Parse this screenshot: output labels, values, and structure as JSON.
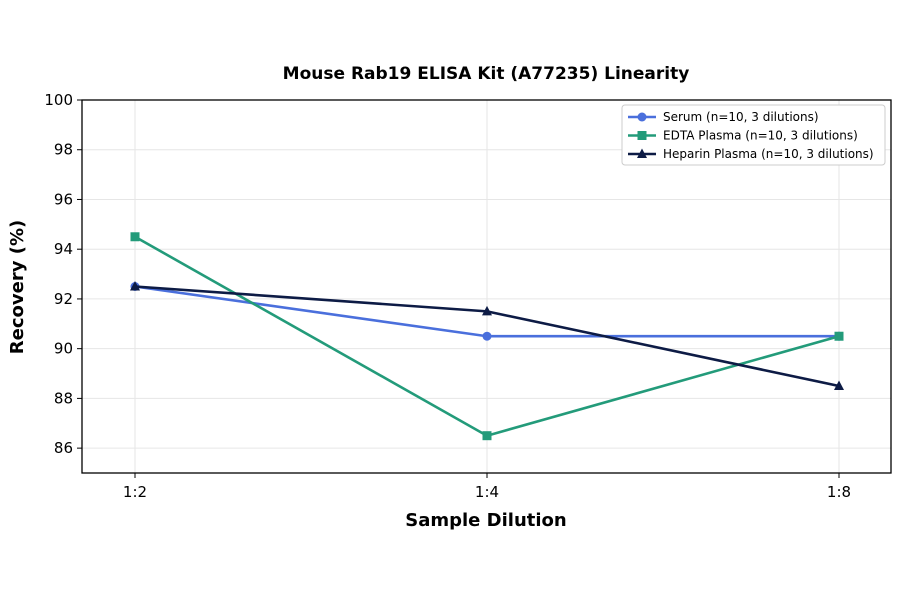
{
  "chart_data": {
    "type": "line",
    "title": "Mouse Rab19 ELISA Kit (A77235) Linearity",
    "xlabel": "Sample Dilution",
    "ylabel": "Recovery (%)",
    "categories": [
      "1:2",
      "1:4",
      "1:8"
    ],
    "ylim": [
      85,
      100
    ],
    "yticks": [
      86,
      88,
      90,
      92,
      94,
      96,
      98,
      100
    ],
    "grid": true,
    "legend_position": "top-right",
    "series": [
      {
        "name": "Serum (n=10, 3 dilutions)",
        "values": [
          92.5,
          90.5,
          90.5
        ],
        "color": "#4a6fdc",
        "marker": "circle"
      },
      {
        "name": "EDTA Plasma (n=10, 3 dilutions)",
        "values": [
          94.5,
          86.5,
          90.5
        ],
        "color": "#239b7a",
        "marker": "square"
      },
      {
        "name": "Heparin Plasma (n=10, 3 dilutions)",
        "values": [
          92.5,
          91.5,
          88.5
        ],
        "color": "#0d1b45",
        "marker": "triangle"
      }
    ]
  }
}
